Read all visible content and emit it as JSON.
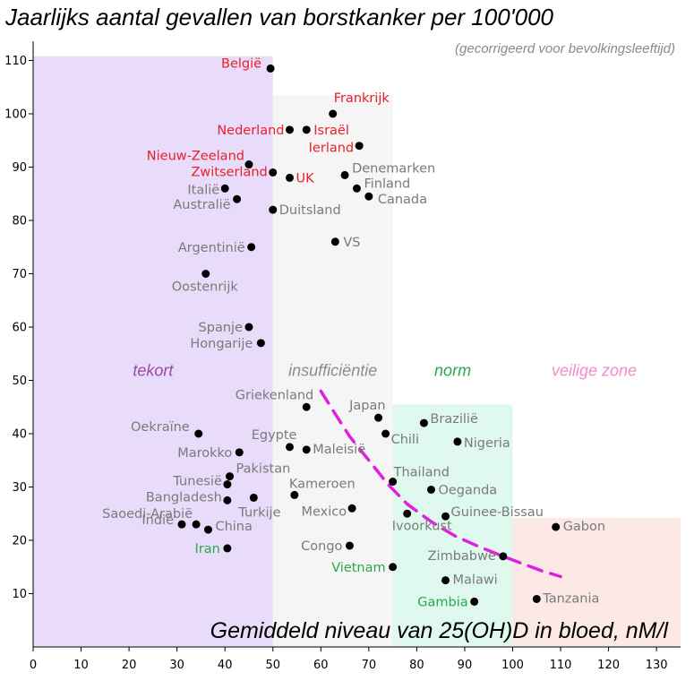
{
  "chart_data": {
    "type": "scatter",
    "title": "Jaarlijks aantal gevallen van borstkanker per 100'000",
    "subtitle": "(gecorrigeerd voor bevolkingsleeftijd)",
    "xlabel": "Gemiddeld niveau van 25(OH)D in bloed, nM/l",
    "ylabel": "",
    "xlim": [
      0,
      135
    ],
    "ylim": [
      0,
      110
    ],
    "xticks": [
      0,
      10,
      20,
      30,
      40,
      50,
      60,
      70,
      80,
      90,
      100,
      110,
      120,
      130
    ],
    "yticks": [
      10,
      20,
      30,
      40,
      50,
      60,
      70,
      80,
      90,
      100,
      110
    ],
    "grid": false,
    "colors": {
      "red": "#e8202a",
      "gray": "#7a7a7a",
      "green": "#2aa84a",
      "point": "#000000",
      "trend": "#e020e0",
      "zone_tekort": "#e8dcfa",
      "zone_insufficientie": "#f5f5f5",
      "zone_norm": "#e0f9ee",
      "zone_veilig": "#fce9e5",
      "label_tekort": "#9b4aa8",
      "label_insufficientie": "#8c8c8c",
      "label_norm": "#2aa84a",
      "label_veilig": "#f08cc8"
    },
    "zones": [
      {
        "label": "tekort",
        "x": [
          0,
          50
        ],
        "y": [
          0,
          110.8
        ],
        "color": "zone_tekort",
        "label_color": "label_tekort"
      },
      {
        "label": "insufficiëntie",
        "x": [
          50,
          75
        ],
        "y": [
          0,
          103.5
        ],
        "color": "zone_insufficientie",
        "label_color": "label_insufficientie"
      },
      {
        "label": "norm",
        "x": [
          75,
          100
        ],
        "y": [
          0,
          45.5
        ],
        "color": "zone_norm",
        "label_color": "label_norm"
      },
      {
        "label": "veilige zone",
        "x": [
          100,
          135
        ],
        "y": [
          0,
          24.2
        ],
        "color": "zone_veilig",
        "label_color": "label_veilig"
      }
    ],
    "trendline": {
      "x": [
        60,
        63,
        66,
        70,
        74,
        78,
        83,
        88,
        93,
        98,
        103,
        106,
        110
      ],
      "y": [
        48,
        43.7,
        39.5,
        35,
        30.5,
        26.8,
        23.5,
        20.8,
        18.8,
        17,
        15.3,
        14.3,
        13.2
      ]
    },
    "points": [
      {
        "label": "België",
        "x": 49.5,
        "y": 108.5,
        "color": "red"
      },
      {
        "label": "Frankrijk",
        "x": 62.5,
        "y": 100,
        "color": "red"
      },
      {
        "label": "Nederland",
        "x": 53.5,
        "y": 97,
        "color": "red"
      },
      {
        "label": "Israël",
        "x": 57,
        "y": 97,
        "color": "red"
      },
      {
        "label": "Ierland",
        "x": 68,
        "y": 94,
        "color": "red"
      },
      {
        "label": "Nieuw-Zeeland",
        "x": 45,
        "y": 90.5,
        "color": "red"
      },
      {
        "label": "Zwitserland",
        "x": 50,
        "y": 89,
        "color": "red"
      },
      {
        "label": "UK",
        "x": 53.5,
        "y": 88,
        "color": "red"
      },
      {
        "label": "Denemarken",
        "x": 65,
        "y": 88.5,
        "color": "gray"
      },
      {
        "label": "Finland",
        "x": 67.5,
        "y": 86,
        "color": "gray"
      },
      {
        "label": "Canada",
        "x": 70,
        "y": 84.5,
        "color": "gray"
      },
      {
        "label": "Italië",
        "x": 40,
        "y": 86,
        "color": "gray"
      },
      {
        "label": "Australië",
        "x": 42.5,
        "y": 84,
        "color": "gray"
      },
      {
        "label": "Duitsland",
        "x": 50,
        "y": 82,
        "color": "gray"
      },
      {
        "label": "VS",
        "x": 63,
        "y": 76,
        "color": "gray"
      },
      {
        "label": "Argentinië",
        "x": 45.5,
        "y": 75,
        "color": "gray"
      },
      {
        "label": "Oostenrijk",
        "x": 36,
        "y": 70,
        "color": "gray"
      },
      {
        "label": "Spanje",
        "x": 45,
        "y": 60,
        "color": "gray"
      },
      {
        "label": "Hongarije",
        "x": 47.5,
        "y": 57,
        "color": "gray"
      },
      {
        "label": "Griekenland",
        "x": 57,
        "y": 45,
        "color": "gray"
      },
      {
        "label": "Japan",
        "x": 72,
        "y": 43,
        "color": "gray"
      },
      {
        "label": "Chili",
        "x": 73.5,
        "y": 40,
        "color": "gray"
      },
      {
        "label": "Brazilië",
        "x": 81.5,
        "y": 42,
        "color": "gray"
      },
      {
        "label": "Nigeria",
        "x": 88.5,
        "y": 38.5,
        "color": "gray"
      },
      {
        "label": "Oekraïne",
        "x": 34.5,
        "y": 40,
        "color": "gray"
      },
      {
        "label": "Egypte",
        "x": 53.5,
        "y": 37.5,
        "color": "gray"
      },
      {
        "label": "Maleisië",
        "x": 57,
        "y": 37,
        "color": "gray"
      },
      {
        "label": "Marokko",
        "x": 43,
        "y": 36.5,
        "color": "gray"
      },
      {
        "label": "Pakistan",
        "x": 41,
        "y": 32,
        "color": "gray"
      },
      {
        "label": "Tunesië",
        "x": 40.5,
        "y": 30.5,
        "color": "gray"
      },
      {
        "label": "Thailand",
        "x": 75,
        "y": 31,
        "color": "gray"
      },
      {
        "label": "Oeganda",
        "x": 83,
        "y": 29.5,
        "color": "gray"
      },
      {
        "label": "Bangladesh",
        "x": 40.5,
        "y": 27.5,
        "color": "gray"
      },
      {
        "label": "Kameroen",
        "x": 54.5,
        "y": 28.5,
        "color": "gray"
      },
      {
        "label": "Turkije",
        "x": 46,
        "y": 28,
        "color": "gray"
      },
      {
        "label": "Mexico",
        "x": 66.5,
        "y": 26,
        "color": "gray"
      },
      {
        "label": "Ivoorkust",
        "x": 78,
        "y": 25,
        "color": "gray"
      },
      {
        "label": "Guinee-Bissau",
        "x": 86,
        "y": 24.5,
        "color": "gray"
      },
      {
        "label": "Saoedi-Arabië",
        "x": 34,
        "y": 23,
        "color": "gray"
      },
      {
        "label": "Indië",
        "x": 31,
        "y": 23,
        "color": "gray"
      },
      {
        "label": "China",
        "x": 36.5,
        "y": 22,
        "color": "gray"
      },
      {
        "label": "Gabon",
        "x": 109,
        "y": 22.5,
        "color": "gray"
      },
      {
        "label": "Congo",
        "x": 66,
        "y": 19,
        "color": "gray"
      },
      {
        "label": "Iran",
        "x": 40.5,
        "y": 18.5,
        "color": "green"
      },
      {
        "label": "Zimbabwe",
        "x": 98,
        "y": 17,
        "color": "gray"
      },
      {
        "label": "Vietnam",
        "x": 75,
        "y": 15,
        "color": "green"
      },
      {
        "label": "Malawi",
        "x": 86,
        "y": 12.5,
        "color": "gray"
      },
      {
        "label": "Gambia",
        "x": 92,
        "y": 8.5,
        "color": "green"
      },
      {
        "label": "Tanzania",
        "x": 105,
        "y": 9,
        "color": "gray"
      }
    ]
  }
}
